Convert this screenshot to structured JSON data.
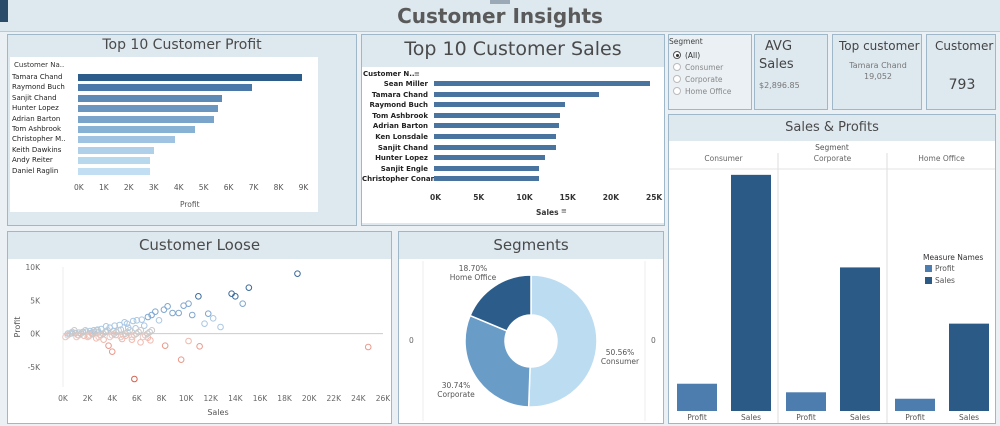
{
  "title": "Customer Insights",
  "profit_panel": {
    "title": "Top 10 Customer Profit",
    "header": "Customer Na..",
    "axis_label": "Profit",
    "ticks": [
      "0K",
      "1K",
      "2K",
      "3K",
      "4K",
      "5K",
      "6K",
      "7K",
      "8K",
      "9K"
    ]
  },
  "sales_panel": {
    "title": "Top 10 Customer Sales",
    "header": "Customer N..",
    "axis_label": "Sales",
    "ticks": [
      "0K",
      "5K",
      "10K",
      "15K",
      "20K",
      "25K"
    ]
  },
  "segment_filter": {
    "title": "Segment",
    "options": [
      "(All)",
      "Consumer",
      "Corporate",
      "Home Office"
    ]
  },
  "avg_sales": {
    "title_line1": "AVG",
    "title_line2": "Sales",
    "value": "$2,896.85"
  },
  "top_customer": {
    "title": "Top customer",
    "name": "Tamara Chand",
    "value": "19,052"
  },
  "customer_count": {
    "title": "Customer",
    "value": "793"
  },
  "sales_profits": {
    "title": "Sales & Profits",
    "header": "Segment",
    "segments": [
      "Consumer",
      "Corporate",
      "Home Office"
    ],
    "bar_labels": [
      "Profit",
      "Sales"
    ],
    "legend_title": "Measure Names",
    "legend": [
      "Profit",
      "Sales"
    ]
  },
  "customer_loose": {
    "title": "Customer Loose",
    "xlabel": "Sales",
    "ylabel": "Profit",
    "xticks": [
      "0K",
      "2K",
      "4K",
      "6K",
      "8K",
      "10K",
      "12K",
      "14K",
      "16K",
      "18K",
      "20K",
      "22K",
      "24K",
      "26K"
    ],
    "yticks": [
      "10K",
      "5K",
      "0K",
      "-5K"
    ]
  },
  "segments_panel": {
    "title": "Segments",
    "labels": [
      {
        "pct": "50.56%",
        "name": "Consumer"
      },
      {
        "pct": "30.74%",
        "name": "Corporate"
      },
      {
        "pct": "18.70%",
        "name": "Home Office"
      }
    ],
    "zero_left": "0",
    "zero_right": "0"
  },
  "chart_data": [
    {
      "type": "bar",
      "title": "Top 10 Customer Profit",
      "xlabel": "Profit",
      "categories": [
        "Tamara Chand",
        "Raymond Buch",
        "Sanjit Chand",
        "Hunter Lopez",
        "Adrian Barton",
        "Tom Ashbrook",
        "Christopher M..",
        "Keith Dawkins",
        "Andy Reiter",
        "Daniel Raglin"
      ],
      "values": [
        8981,
        6976,
        5757,
        5622,
        5444,
        4704,
        3900,
        3039,
        2884,
        2869
      ],
      "xlim": [
        0,
        9500
      ],
      "colors": [
        "#2c5d8a",
        "#4a78a8",
        "#5e8ab6",
        "#6a96c0",
        "#7aa4ca",
        "#88b2d4",
        "#9fc3e0",
        "#afd0e8",
        "#b8d8ee",
        "#c2def2"
      ]
    },
    {
      "type": "bar",
      "title": "Top 10 Customer Sales",
      "xlabel": "Sales",
      "categories": [
        "Sean Miller",
        "Tamara Chand",
        "Raymond Buch",
        "Tom Ashbrook",
        "Adrian Barton",
        "Ken Lonsdale",
        "Sanjit Chand",
        "Hunter Lopez",
        "Sanjit Engle",
        "Christopher Conant"
      ],
      "values": [
        25043,
        19052,
        15117,
        14596,
        14474,
        14175,
        14142,
        12873,
        12209,
        12129
      ],
      "xlim": [
        0,
        26000
      ]
    },
    {
      "type": "bar",
      "title": "Sales & Profits",
      "categories": [
        "Consumer",
        "Corporate",
        "Home Office"
      ],
      "series": [
        {
          "name": "Profit",
          "values": [
            134119,
            91979,
            60299
          ]
        },
        {
          "name": "Sales",
          "values": [
            1161401,
            706146,
            429653
          ]
        }
      ],
      "ylim": [
        0,
        1200000
      ]
    },
    {
      "type": "pie",
      "title": "Segments",
      "categories": [
        "Consumer",
        "Corporate",
        "Home Office"
      ],
      "values": [
        50.56,
        30.74,
        18.7
      ],
      "colors": [
        "#bcdcf1",
        "#6a9cc8",
        "#2c5d8a"
      ]
    },
    {
      "type": "scatter",
      "title": "Customer Loose",
      "xlabel": "Sales",
      "ylabel": "Profit",
      "xlim": [
        0,
        26000
      ],
      "ylim": [
        -8000,
        10000
      ],
      "points": [
        [
          19050,
          9000
        ],
        [
          13700,
          6000
        ],
        [
          14000,
          5600
        ],
        [
          14600,
          4500
        ],
        [
          15100,
          6900
        ],
        [
          11000,
          5600
        ],
        [
          10200,
          4500
        ],
        [
          9800,
          4200
        ],
        [
          8500,
          4100
        ],
        [
          8900,
          3100
        ],
        [
          7500,
          3300
        ],
        [
          7200,
          2800
        ],
        [
          6900,
          2500
        ],
        [
          6400,
          2100
        ],
        [
          6000,
          2000
        ],
        [
          5700,
          1900
        ],
        [
          5200,
          1500
        ],
        [
          5000,
          1700
        ],
        [
          4600,
          1300
        ],
        [
          4200,
          1200
        ],
        [
          3800,
          900
        ],
        [
          3500,
          1100
        ],
        [
          3100,
          700
        ],
        [
          2800,
          600
        ],
        [
          2500,
          500
        ],
        [
          2200,
          400
        ],
        [
          1900,
          300
        ],
        [
          1600,
          250
        ],
        [
          1300,
          150
        ],
        [
          1000,
          100
        ],
        [
          700,
          50
        ],
        [
          400,
          20
        ],
        [
          11800,
          3000
        ],
        [
          12200,
          2300
        ],
        [
          11500,
          1500
        ],
        [
          10500,
          2800
        ],
        [
          9400,
          3100
        ],
        [
          8200,
          3600
        ],
        [
          7800,
          2000
        ],
        [
          6600,
          1200
        ],
        [
          5900,
          800
        ],
        [
          5300,
          900
        ],
        [
          4700,
          600
        ],
        [
          4100,
          400
        ],
        [
          3500,
          300
        ],
        [
          2900,
          200
        ],
        [
          2300,
          100
        ],
        [
          12800,
          1000
        ],
        [
          5800,
          -6800
        ],
        [
          9600,
          -3900
        ],
        [
          10200,
          -1100
        ],
        [
          8300,
          -1800
        ],
        [
          7100,
          -1000
        ],
        [
          6300,
          -1300
        ],
        [
          5600,
          -900
        ],
        [
          4800,
          -800
        ],
        [
          4000,
          -2700
        ],
        [
          3700,
          -1800
        ],
        [
          3300,
          -900
        ],
        [
          2700,
          -700
        ],
        [
          2100,
          -400
        ],
        [
          1700,
          -300
        ],
        [
          1200,
          -200
        ],
        [
          11100,
          -1900
        ],
        [
          24800,
          -2000
        ],
        [
          6900,
          -600
        ],
        [
          5100,
          -300
        ],
        [
          4300,
          -200
        ],
        [
          3000,
          -150
        ],
        [
          2400,
          -100
        ]
      ]
    }
  ]
}
